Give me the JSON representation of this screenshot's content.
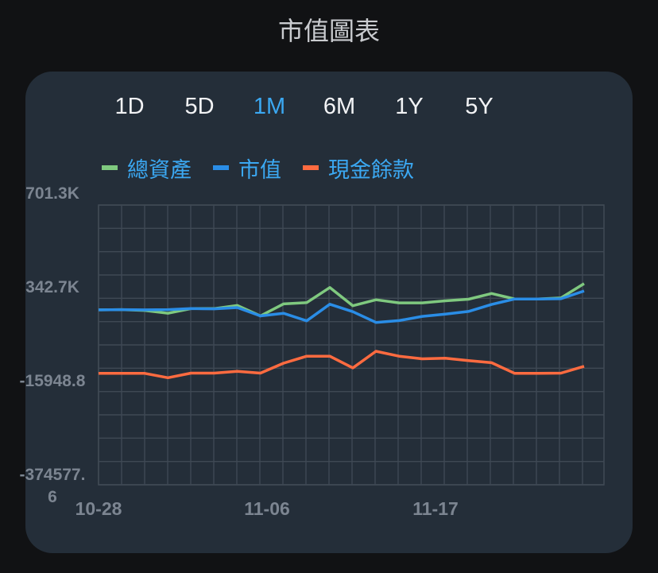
{
  "header": {
    "title": "市值圖表"
  },
  "tabs": [
    {
      "label": "1D",
      "active": false
    },
    {
      "label": "5D",
      "active": false
    },
    {
      "label": "1M",
      "active": true
    },
    {
      "label": "6M",
      "active": false
    },
    {
      "label": "1Y",
      "active": false
    },
    {
      "label": "5Y",
      "active": false
    }
  ],
  "colors": {
    "background": "#111214",
    "card": "#242e39",
    "active_tab": "#3ba8f2",
    "grid": "#3f4954",
    "axis_text": "#7c8591"
  },
  "chart_data": {
    "type": "line",
    "title": "",
    "xlabel": "",
    "ylabel": "",
    "x_tick_labels": [
      "10-28",
      "11-06",
      "11-17"
    ],
    "x_tick_indices": [
      0,
      7,
      14
    ],
    "y_tick_labels": [
      "701.3K",
      "342.7K",
      "-15948.8",
      "-374577.6"
    ],
    "y_tick_values": [
      701300,
      342700,
      -15948.8,
      -374577.6
    ],
    "ylim": [
      -374577.6,
      701300
    ],
    "grid": true,
    "legend_position": "top",
    "series": [
      {
        "name": "總資產",
        "color": "#7fc97f",
        "values": [
          298000,
          299000,
          296000,
          285000,
          303000,
          303000,
          315000,
          275000,
          321000,
          326000,
          384000,
          314000,
          337000,
          325000,
          325000,
          333000,
          339000,
          361000,
          340000,
          340000,
          344000,
          399000
        ]
      },
      {
        "name": "市值",
        "color": "#2a8de6",
        "values": [
          298000,
          299000,
          298000,
          299000,
          303000,
          302000,
          307000,
          275000,
          285000,
          256000,
          320000,
          291000,
          250000,
          257000,
          273000,
          282000,
          292000,
          319000,
          340000,
          340000,
          341000,
          371000
        ]
      },
      {
        "name": "現金餘款",
        "color": "#ff6b40",
        "values": [
          54000,
          54000,
          54000,
          37000,
          55000,
          55000,
          62000,
          55000,
          93000,
          120000,
          120000,
          75000,
          139000,
          120000,
          110000,
          112000,
          103000,
          95000,
          54000,
          54000,
          55000,
          81000
        ]
      }
    ]
  }
}
